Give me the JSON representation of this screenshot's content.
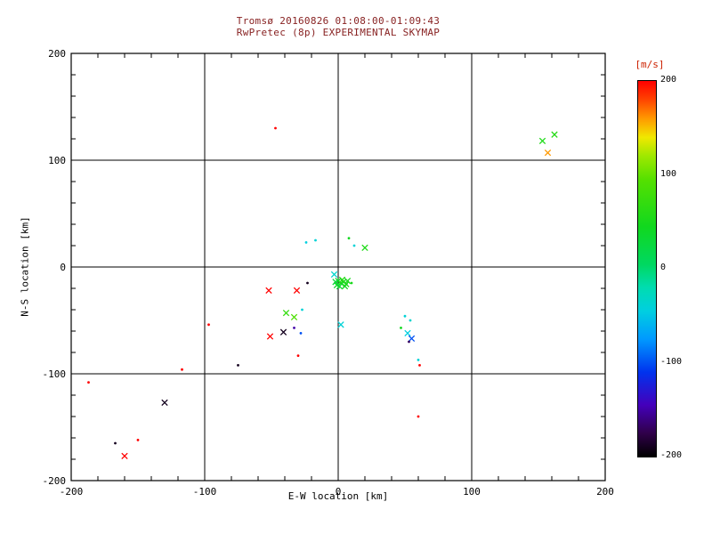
{
  "title": {
    "line1": "Tromsø 20160826 01:08:00-01:09:43",
    "line2": "RwPretec (8p) EXPERIMENTAL SKYMAP"
  },
  "axes": {
    "xlabel": "E-W location [km]",
    "ylabel": "N-S location [km]",
    "xlim": [
      -200,
      200
    ],
    "ylim": [
      -200,
      200
    ],
    "xticks": [
      -200,
      -100,
      0,
      100,
      200
    ],
    "yticks": [
      -200,
      -100,
      0,
      100,
      200
    ],
    "grid_lines": [
      -100,
      0,
      100
    ],
    "minor_tick_step": 20
  },
  "colorbar": {
    "label": "[m/s]",
    "min": -200,
    "max": 200,
    "ticks": [
      200,
      100,
      0,
      -100,
      -200
    ],
    "stops": [
      {
        "v": -200,
        "c": "#000000"
      },
      {
        "v": -175,
        "c": "#30004a"
      },
      {
        "v": -145,
        "c": "#4400bb"
      },
      {
        "v": -110,
        "c": "#0033ee"
      },
      {
        "v": -75,
        "c": "#0099ff"
      },
      {
        "v": -45,
        "c": "#00cfe0"
      },
      {
        "v": -20,
        "c": "#00dcb0"
      },
      {
        "v": 5,
        "c": "#00d860"
      },
      {
        "v": 45,
        "c": "#11d81e"
      },
      {
        "v": 95,
        "c": "#55e000"
      },
      {
        "v": 120,
        "c": "#9ee800"
      },
      {
        "v": 140,
        "c": "#f0e800"
      },
      {
        "v": 160,
        "c": "#ff9900"
      },
      {
        "v": 180,
        "c": "#ff4400"
      },
      {
        "v": 200,
        "c": "#ff0000"
      }
    ]
  },
  "colors": {
    "title": "#882222",
    "cbar_label": "#cc2200",
    "axis": "#000000",
    "background": "#ffffff"
  },
  "chart_data": {
    "type": "scatter",
    "title": "Tromsø 20160826 01:08:00-01:09:43 / RwPretec (8p) EXPERIMENTAL SKYMAP",
    "xlabel": "E-W location [km]",
    "ylabel": "N-S location [km]",
    "xlim": [
      -200,
      200
    ],
    "ylim": [
      -200,
      200
    ],
    "color_unit": "m/s",
    "color_range": [
      -200,
      200
    ],
    "grid": true,
    "legend_position": "colorbar-right",
    "points": [
      {
        "x": -47,
        "y": 130,
        "v": 200,
        "marker": "dot"
      },
      {
        "x": 153,
        "y": 118,
        "v": 55,
        "marker": "x"
      },
      {
        "x": 162,
        "y": 124,
        "v": 60,
        "marker": "x"
      },
      {
        "x": 157,
        "y": 107,
        "v": 160,
        "marker": "x"
      },
      {
        "x": -17,
        "y": 25,
        "v": -40,
        "marker": "dot"
      },
      {
        "x": -24,
        "y": 23,
        "v": -45,
        "marker": "dot"
      },
      {
        "x": 8,
        "y": 27,
        "v": 45,
        "marker": "dot"
      },
      {
        "x": 20,
        "y": 18,
        "v": 55,
        "marker": "x"
      },
      {
        "x": 12,
        "y": 20,
        "v": -40,
        "marker": "dot"
      },
      {
        "x": 0,
        "y": -13,
        "v": 40,
        "marker": "x"
      },
      {
        "x": 2,
        "y": -15,
        "v": 50,
        "marker": "x"
      },
      {
        "x": 4,
        "y": -14,
        "v": 45,
        "marker": "x"
      },
      {
        "x": 6,
        "y": -16,
        "v": 55,
        "marker": "x"
      },
      {
        "x": -1,
        "y": -17,
        "v": 40,
        "marker": "x"
      },
      {
        "x": 1,
        "y": -18,
        "v": 35,
        "marker": "x"
      },
      {
        "x": 3,
        "y": -12,
        "v": 60,
        "marker": "x"
      },
      {
        "x": 7,
        "y": -13,
        "v": 50,
        "marker": "x"
      },
      {
        "x": 5,
        "y": -18,
        "v": 45,
        "marker": "x"
      },
      {
        "x": -2,
        "y": -14,
        "v": 30,
        "marker": "x"
      },
      {
        "x": 10,
        "y": -15,
        "v": 50,
        "marker": "dot"
      },
      {
        "x": -3,
        "y": -7,
        "v": -35,
        "marker": "x"
      },
      {
        "x": -52,
        "y": -22,
        "v": 200,
        "marker": "x"
      },
      {
        "x": -31,
        "y": -22,
        "v": 200,
        "marker": "x"
      },
      {
        "x": -23,
        "y": -15,
        "v": -190,
        "marker": "dot"
      },
      {
        "x": -39,
        "y": -43,
        "v": 70,
        "marker": "x"
      },
      {
        "x": -33,
        "y": -47,
        "v": 90,
        "marker": "x"
      },
      {
        "x": -27,
        "y": -40,
        "v": -40,
        "marker": "dot"
      },
      {
        "x": -51,
        "y": -65,
        "v": 200,
        "marker": "x"
      },
      {
        "x": -41,
        "y": -61,
        "v": -190,
        "marker": "x"
      },
      {
        "x": -28,
        "y": -62,
        "v": -100,
        "marker": "dot"
      },
      {
        "x": -33,
        "y": -57,
        "v": -150,
        "marker": "dot"
      },
      {
        "x": 2,
        "y": -54,
        "v": -40,
        "marker": "x"
      },
      {
        "x": -97,
        "y": -54,
        "v": 200,
        "marker": "dot"
      },
      {
        "x": -30,
        "y": -83,
        "v": 200,
        "marker": "dot"
      },
      {
        "x": 50,
        "y": -46,
        "v": -40,
        "marker": "dot"
      },
      {
        "x": 54,
        "y": -50,
        "v": -35,
        "marker": "dot"
      },
      {
        "x": 47,
        "y": -57,
        "v": 45,
        "marker": "dot"
      },
      {
        "x": 52,
        "y": -62,
        "v": -45,
        "marker": "x"
      },
      {
        "x": 55,
        "y": -67,
        "v": -100,
        "marker": "x"
      },
      {
        "x": 53,
        "y": -70,
        "v": -170,
        "marker": "dot"
      },
      {
        "x": 60,
        "y": -87,
        "v": -40,
        "marker": "dot"
      },
      {
        "x": 61,
        "y": -92,
        "v": 200,
        "marker": "dot"
      },
      {
        "x": -75,
        "y": -92,
        "v": -190,
        "marker": "dot"
      },
      {
        "x": -117,
        "y": -96,
        "v": 200,
        "marker": "dot"
      },
      {
        "x": -187,
        "y": -108,
        "v": 200,
        "marker": "dot"
      },
      {
        "x": -130,
        "y": -127,
        "v": -190,
        "marker": "x"
      },
      {
        "x": 60,
        "y": -140,
        "v": 200,
        "marker": "dot"
      },
      {
        "x": -167,
        "y": -165,
        "v": -190,
        "marker": "dot"
      },
      {
        "x": -150,
        "y": -162,
        "v": 200,
        "marker": "dot"
      },
      {
        "x": -160,
        "y": -177,
        "v": 200,
        "marker": "x"
      }
    ]
  }
}
